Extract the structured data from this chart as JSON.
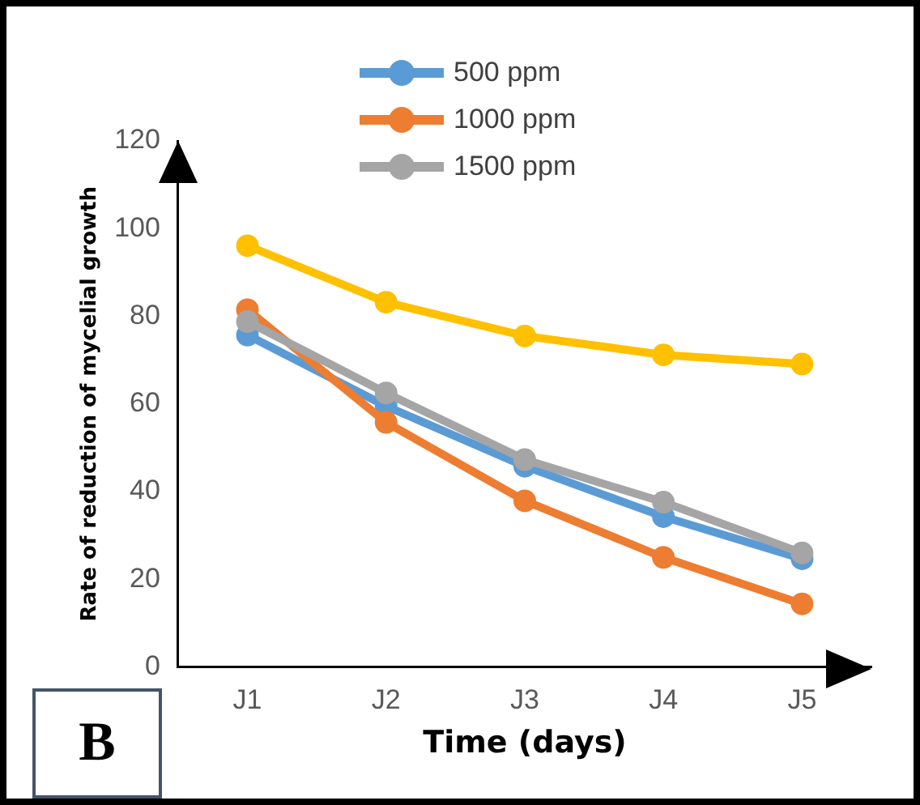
{
  "chart_data": {
    "type": "line",
    "xlabel": "Time (days)",
    "ylabel": "Rate of reduction of mycelial growth",
    "categories": [
      "J1",
      "J2",
      "J3",
      "J4",
      "J5"
    ],
    "series": [
      {
        "name": "500 ppm",
        "color": "#5b9bd5",
        "values": [
          75.7,
          59.5,
          45.8,
          34.3,
          24.7
        ]
      },
      {
        "name": "1000 ppm",
        "color": "#ed7d31",
        "values": [
          81.5,
          55.8,
          37.9,
          25,
          14.4
        ]
      },
      {
        "name": "1500 ppm",
        "color": "#a5a5a5",
        "values": [
          78.8,
          62.5,
          47.3,
          37.6,
          26
        ]
      },
      {
        "color": "#ffc000",
        "values": [
          96.1,
          83.2,
          75.5,
          71.2,
          69.1
        ]
      }
    ],
    "ylim": [
      0,
      120
    ],
    "yticks": [
      0,
      20,
      40,
      60,
      80,
      100,
      120
    ],
    "grid": false,
    "legend": "top",
    "marker": "circle",
    "line_style": "solid",
    "annotations": [
      "B"
    ]
  }
}
